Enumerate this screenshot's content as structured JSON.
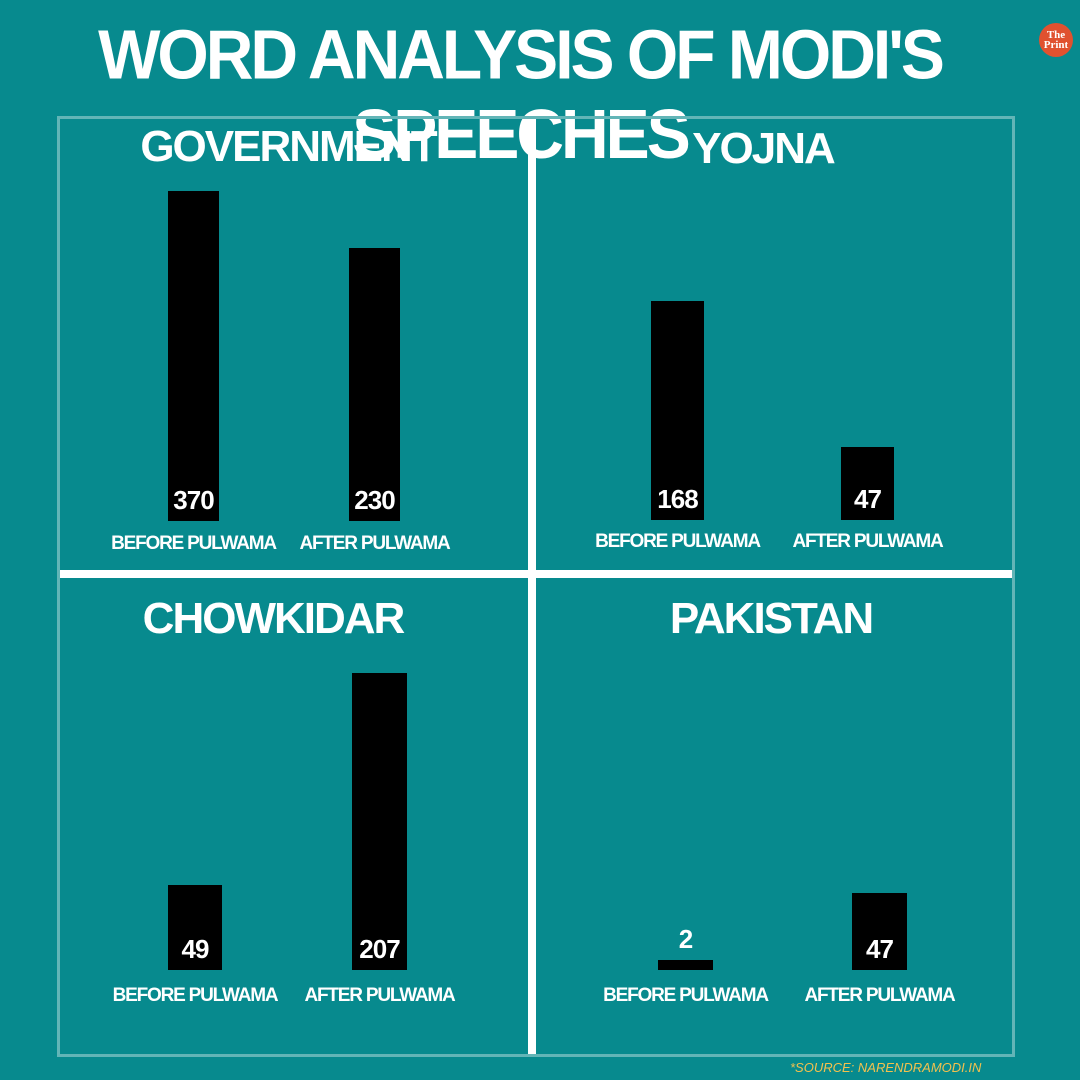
{
  "title": "WORD ANALYSIS OF MODI'S SPEECHES",
  "logo": {
    "line1": "The",
    "line2": "Print"
  },
  "source": "*SOURCE: NARENDRAMODI.IN",
  "colors": {
    "background": "#078a8e",
    "bar": "#000000",
    "frame": "#62b5b7",
    "source": "#f2c14e",
    "logo": "#e0512f"
  },
  "chart_data": [
    {
      "type": "bar",
      "title": "GOVERNMENT",
      "categories": [
        "BEFORE PULWAMA",
        "AFTER PULWAMA"
      ],
      "values": [
        370,
        230
      ],
      "value_labels": [
        "370",
        "230"
      ]
    },
    {
      "type": "bar",
      "title": "YOJNA",
      "categories": [
        "BEFORE PULWAMA",
        "AFTER PULWAMA"
      ],
      "values": [
        168,
        47
      ],
      "value_labels": [
        "168",
        "47"
      ]
    },
    {
      "type": "bar",
      "title": "CHOWKIDAR",
      "categories": [
        "BEFORE PULWAMA",
        "AFTER PULWAMA"
      ],
      "values": [
        49,
        207
      ],
      "value_labels": [
        "49",
        "207"
      ]
    },
    {
      "type": "bar",
      "title": "PAKISTAN",
      "categories": [
        "BEFORE PULWAMA",
        "AFTER PULWAMA"
      ],
      "values": [
        2,
        47
      ],
      "value_labels": [
        "2",
        "47"
      ]
    }
  ]
}
